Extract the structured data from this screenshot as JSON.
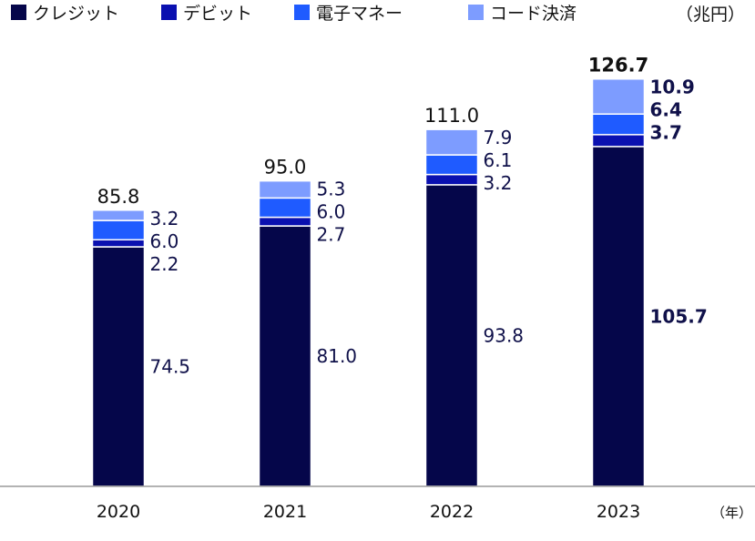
{
  "chart_data": {
    "type": "bar",
    "stacked": true,
    "unit": "（兆円）",
    "x_unit": "（年）",
    "categories": [
      "2020",
      "2021",
      "2022",
      "2023"
    ],
    "series": [
      {
        "name": "クレジット",
        "values": [
          74.5,
          81.0,
          93.8,
          105.7
        ],
        "color": "#05064a"
      },
      {
        "name": "デビット",
        "values": [
          2.2,
          2.7,
          3.2,
          3.7
        ],
        "color": "#0a10b0"
      },
      {
        "name": "電子マネー",
        "values": [
          6.0,
          6.0,
          6.1,
          6.4
        ],
        "color": "#1f5bff"
      },
      {
        "name": "コード決済",
        "values": [
          3.2,
          5.3,
          7.9,
          10.9
        ],
        "color": "#7d9cff"
      }
    ],
    "value_labels": [
      [
        "74.5",
        "2.2",
        "6.0",
        "3.2"
      ],
      [
        "81.0",
        "2.7",
        "6.0",
        "5.3"
      ],
      [
        "93.8",
        "3.2",
        "6.1",
        "7.9"
      ],
      [
        "105.7",
        "3.7",
        "6.4",
        "10.9"
      ]
    ],
    "totals": [
      85.8,
      95.0,
      111.0,
      126.7
    ],
    "total_labels": [
      "85.8",
      "95.0",
      "111.0",
      "126.7"
    ],
    "highlight_category": "2023",
    "ylim": [
      0,
      140
    ],
    "grid": false,
    "legend_position": "top-left"
  }
}
